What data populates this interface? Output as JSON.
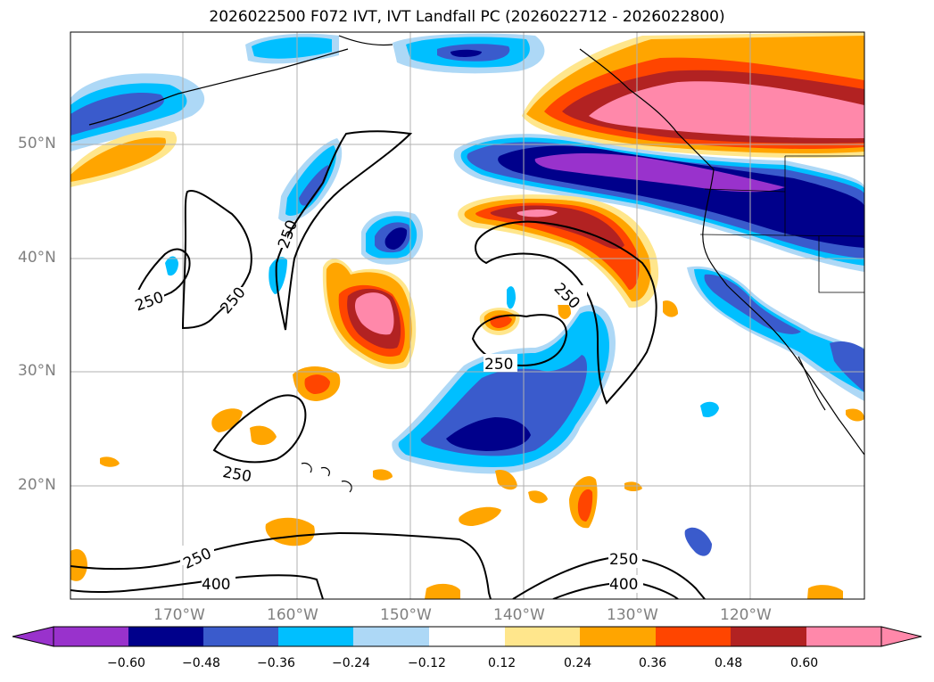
{
  "title": "2026022500 F072 IVT, IVT Landfall PC (2026022712 - 2026022800)",
  "map": {
    "lon_range": [
      -180,
      -110
    ],
    "lat_range": [
      10,
      60
    ],
    "lat_labels": [
      {
        "lat": 50,
        "text": "50°N"
      },
      {
        "lat": 40,
        "text": "40°N"
      },
      {
        "lat": 30,
        "text": "30°N"
      },
      {
        "lat": 20,
        "text": "20°N"
      }
    ],
    "lon_labels": [
      {
        "lon": -170,
        "text": "170°W"
      },
      {
        "lon": -160,
        "text": "160°W"
      },
      {
        "lon": -150,
        "text": "150°W"
      },
      {
        "lon": -140,
        "text": "140°W"
      },
      {
        "lon": -130,
        "text": "130°W"
      },
      {
        "lon": -120,
        "text": "120°W"
      }
    ],
    "contour_labels": [
      {
        "text": "250"
      },
      {
        "text": "250"
      },
      {
        "text": "250"
      },
      {
        "text": "250"
      },
      {
        "text": "250"
      },
      {
        "text": "250"
      },
      {
        "text": "250"
      },
      {
        "text": "250"
      },
      {
        "text": "400"
      },
      {
        "text": "400"
      }
    ]
  },
  "colorbar": {
    "ticks": [
      "−0.60",
      "−0.48",
      "−0.36",
      "−0.24",
      "−0.12",
      "0.12",
      "0.24",
      "0.36",
      "0.48",
      "0.60"
    ],
    "colors": [
      "#9932cc",
      "#00008b",
      "#3a5bcc",
      "#00bfff",
      "#add8f6",
      "#ffffff",
      "#ffe68c",
      "#ffa500",
      "#ff4500",
      "#b22222",
      "#ff88aa",
      "#ff88aa"
    ]
  },
  "colors": {
    "neg_strong": "#9932cc",
    "neg_dark": "#00008b",
    "neg_mid": "#3a5bcc",
    "neg_light": "#00bfff",
    "neg_pale": "#add8f6",
    "pos_pale": "#ffe68c",
    "pos_light": "#ffa500",
    "pos_mid": "#ff4500",
    "pos_dark": "#b22222",
    "pos_strong": "#ff88aa"
  }
}
